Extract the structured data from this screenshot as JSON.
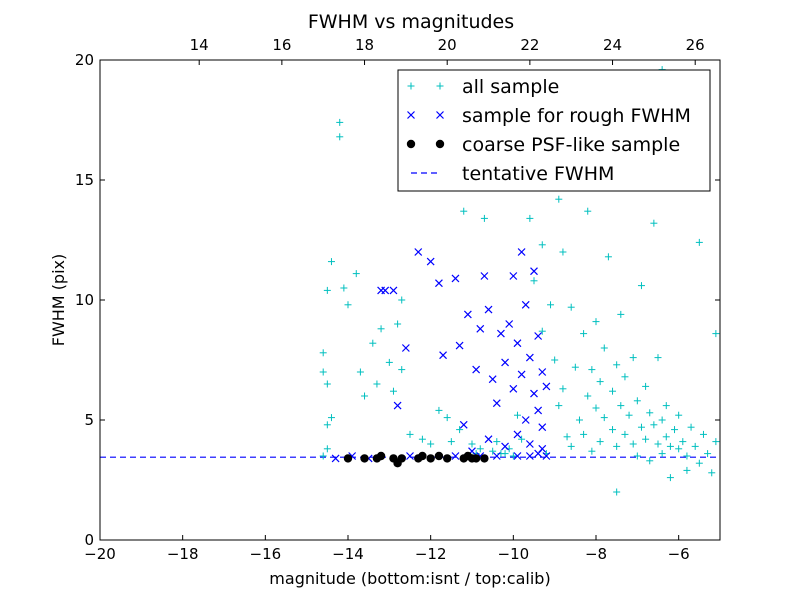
{
  "chart_data": {
    "type": "scatter",
    "title": "FWHM vs magnitudes",
    "xlabel": "magnitude (bottom:isnt / top:calib)",
    "ylabel": "FWHM (pix)",
    "xlim": [
      -20,
      -5
    ],
    "ylim": [
      0,
      20
    ],
    "x_ticks": [
      "−20",
      "−18",
      "−16",
      "−14",
      "−12",
      "−10",
      "−8",
      "−6"
    ],
    "x_tick_values": [
      -20,
      -18,
      -16,
      -14,
      -12,
      -10,
      -8,
      -6
    ],
    "y_ticks": [
      "0",
      "5",
      "10",
      "15",
      "20"
    ],
    "y_tick_values": [
      0,
      5,
      10,
      15,
      20
    ],
    "top_axis": {
      "offset": 31.6,
      "ticks": [
        "14",
        "16",
        "18",
        "20",
        "22",
        "24",
        "26"
      ],
      "tick_values": [
        14,
        16,
        18,
        20,
        22,
        24,
        26
      ]
    },
    "grid": false,
    "legend_position": "top-right",
    "tentative_fwhm": 3.45,
    "series": [
      {
        "name": "all sample",
        "marker": "plus",
        "color": "#00bfbf",
        "points": [
          [
            -14.6,
            3.5
          ],
          [
            -14.5,
            3.8
          ],
          [
            -14.5,
            4.8
          ],
          [
            -14.4,
            5.1
          ],
          [
            -14.5,
            6.5
          ],
          [
            -14.6,
            7.0
          ],
          [
            -14.6,
            7.8
          ],
          [
            -14.5,
            10.4
          ],
          [
            -14.4,
            11.6
          ],
          [
            -14.2,
            17.4
          ],
          [
            -14.2,
            16.8
          ],
          [
            -14.1,
            10.5
          ],
          [
            -14.0,
            9.8
          ],
          [
            -13.8,
            11.1
          ],
          [
            -13.7,
            7.0
          ],
          [
            -13.6,
            6.0
          ],
          [
            -13.4,
            8.2
          ],
          [
            -13.3,
            6.5
          ],
          [
            -13.2,
            8.8
          ],
          [
            -13.0,
            7.4
          ],
          [
            -12.9,
            6.2
          ],
          [
            -12.8,
            9.0
          ],
          [
            -12.7,
            10.0
          ],
          [
            -12.7,
            7.1
          ],
          [
            -12.5,
            4.4
          ],
          [
            -12.2,
            4.2
          ],
          [
            -12.0,
            4.0
          ],
          [
            -11.8,
            5.4
          ],
          [
            -11.6,
            5.1
          ],
          [
            -11.5,
            4.1
          ],
          [
            -11.3,
            4.6
          ],
          [
            -11.2,
            13.7
          ],
          [
            -11.0,
            4.0
          ],
          [
            -10.9,
            3.6
          ],
          [
            -10.8,
            3.8
          ],
          [
            -10.7,
            13.4
          ],
          [
            -10.5,
            3.7
          ],
          [
            -10.4,
            4.1
          ],
          [
            -10.3,
            3.6
          ],
          [
            -10.2,
            3.6
          ],
          [
            -10.1,
            3.8
          ],
          [
            -10.0,
            3.5
          ],
          [
            -9.9,
            5.2
          ],
          [
            -9.8,
            4.2
          ],
          [
            -9.6,
            13.4
          ],
          [
            -9.5,
            10.8
          ],
          [
            -9.3,
            12.3
          ],
          [
            -9.3,
            8.7
          ],
          [
            -9.2,
            3.6
          ],
          [
            -9.1,
            9.8
          ],
          [
            -9.0,
            7.5
          ],
          [
            -8.9,
            5.6
          ],
          [
            -8.8,
            6.3
          ],
          [
            -8.8,
            12.0
          ],
          [
            -8.7,
            4.3
          ],
          [
            -8.6,
            9.7
          ],
          [
            -8.6,
            3.9
          ],
          [
            -8.5,
            7.2
          ],
          [
            -8.5,
            17.1
          ],
          [
            -8.4,
            5.0
          ],
          [
            -8.3,
            8.6
          ],
          [
            -8.3,
            4.4
          ],
          [
            -8.2,
            6.0
          ],
          [
            -8.2,
            13.7
          ],
          [
            -8.1,
            7.1
          ],
          [
            -8.1,
            3.7
          ],
          [
            -8.0,
            5.5
          ],
          [
            -8.0,
            9.1
          ],
          [
            -7.9,
            6.6
          ],
          [
            -7.9,
            4.1
          ],
          [
            -7.8,
            8.0
          ],
          [
            -7.8,
            5.1
          ],
          [
            -7.7,
            15.6
          ],
          [
            -7.7,
            11.8
          ],
          [
            -7.6,
            6.2
          ],
          [
            -7.6,
            4.6
          ],
          [
            -7.5,
            7.3
          ],
          [
            -7.5,
            3.9
          ],
          [
            -7.4,
            5.6
          ],
          [
            -7.4,
            9.4
          ],
          [
            -7.3,
            4.4
          ],
          [
            -7.3,
            6.8
          ],
          [
            -7.2,
            5.2
          ],
          [
            -7.2,
            19.4
          ],
          [
            -7.1,
            4.0
          ],
          [
            -7.1,
            7.6
          ],
          [
            -7.0,
            5.8
          ],
          [
            -7.0,
            3.5
          ],
          [
            -6.9,
            4.7
          ],
          [
            -6.9,
            10.6
          ],
          [
            -6.8,
            6.4
          ],
          [
            -6.8,
            4.2
          ],
          [
            -6.7,
            5.3
          ],
          [
            -6.7,
            3.3
          ],
          [
            -6.6,
            4.8
          ],
          [
            -6.6,
            13.2
          ],
          [
            -6.5,
            4.0
          ],
          [
            -6.5,
            7.6
          ],
          [
            -6.4,
            5.0
          ],
          [
            -6.4,
            3.6
          ],
          [
            -6.3,
            4.3
          ],
          [
            -6.3,
            5.6
          ],
          [
            -6.2,
            3.9
          ],
          [
            -6.2,
            2.6
          ],
          [
            -6.1,
            4.6
          ],
          [
            -6.0,
            3.8
          ],
          [
            -6.0,
            5.2
          ],
          [
            -5.9,
            4.1
          ],
          [
            -5.8,
            3.5
          ],
          [
            -5.8,
            2.9
          ],
          [
            -5.7,
            4.7
          ],
          [
            -5.6,
            3.9
          ],
          [
            -5.5,
            12.4
          ],
          [
            -5.5,
            3.2
          ],
          [
            -5.4,
            4.4
          ],
          [
            -5.3,
            3.6
          ],
          [
            -5.2,
            2.8
          ],
          [
            -5.1,
            8.6
          ],
          [
            -5.1,
            4.1
          ],
          [
            -7.5,
            2.0
          ],
          [
            -8.6,
            18.4
          ],
          [
            -7.3,
            17.7
          ],
          [
            -8.9,
            14.2
          ],
          [
            -6.4,
            19.6
          ],
          [
            -6.1,
            15.9
          ]
        ]
      },
      {
        "name": "sample for rough FWHM",
        "marker": "x",
        "color": "#0000ff",
        "points": [
          [
            -14.3,
            3.4
          ],
          [
            -13.9,
            3.5
          ],
          [
            -13.5,
            3.4
          ],
          [
            -13.2,
            10.4
          ],
          [
            -13.1,
            10.4
          ],
          [
            -12.9,
            10.4
          ],
          [
            -12.8,
            5.6
          ],
          [
            -12.6,
            8.0
          ],
          [
            -12.3,
            12.0
          ],
          [
            -12.0,
            11.6
          ],
          [
            -11.8,
            10.7
          ],
          [
            -11.7,
            7.7
          ],
          [
            -11.4,
            10.9
          ],
          [
            -11.3,
            8.1
          ],
          [
            -11.2,
            4.8
          ],
          [
            -11.1,
            9.4
          ],
          [
            -11.0,
            3.7
          ],
          [
            -10.9,
            7.1
          ],
          [
            -10.8,
            8.8
          ],
          [
            -10.7,
            11.0
          ],
          [
            -10.6,
            9.6
          ],
          [
            -10.6,
            4.2
          ],
          [
            -10.5,
            6.7
          ],
          [
            -10.4,
            5.7
          ],
          [
            -10.3,
            8.6
          ],
          [
            -10.2,
            7.4
          ],
          [
            -10.2,
            3.9
          ],
          [
            -10.1,
            9.0
          ],
          [
            -10.0,
            6.3
          ],
          [
            -10.0,
            11.0
          ],
          [
            -9.9,
            4.4
          ],
          [
            -9.9,
            8.2
          ],
          [
            -9.8,
            6.9
          ],
          [
            -9.8,
            12.0
          ],
          [
            -9.7,
            5.0
          ],
          [
            -9.7,
            9.8
          ],
          [
            -9.6,
            7.6
          ],
          [
            -9.6,
            4.0
          ],
          [
            -9.5,
            6.1
          ],
          [
            -9.5,
            11.2
          ],
          [
            -9.4,
            3.6
          ],
          [
            -9.4,
            8.5
          ],
          [
            -9.4,
            5.4
          ],
          [
            -9.3,
            4.7
          ],
          [
            -9.3,
            7.0
          ],
          [
            -9.2,
            3.5
          ],
          [
            -9.2,
            6.4
          ],
          [
            -10.4,
            3.5
          ],
          [
            -10.8,
            3.5
          ],
          [
            -11.4,
            3.5
          ],
          [
            -9.9,
            3.5
          ],
          [
            -9.6,
            3.5
          ],
          [
            -9.3,
            3.8
          ],
          [
            -12.5,
            3.5
          ]
        ]
      },
      {
        "name": "coarse PSF-like sample",
        "marker": "dot",
        "color": "#000000",
        "points": [
          [
            -14.0,
            3.4
          ],
          [
            -13.6,
            3.4
          ],
          [
            -13.3,
            3.4
          ],
          [
            -13.2,
            3.5
          ],
          [
            -12.9,
            3.4
          ],
          [
            -12.8,
            3.2
          ],
          [
            -12.7,
            3.4
          ],
          [
            -12.3,
            3.4
          ],
          [
            -12.2,
            3.5
          ],
          [
            -12.0,
            3.4
          ],
          [
            -11.8,
            3.5
          ],
          [
            -11.6,
            3.4
          ],
          [
            -11.2,
            3.4
          ],
          [
            -11.1,
            3.5
          ],
          [
            -11.0,
            3.4
          ],
          [
            -10.9,
            3.4
          ],
          [
            -10.7,
            3.4
          ]
        ]
      },
      {
        "name": "tentative FWHM",
        "marker": "dashed-line",
        "color": "#0000ff",
        "points": []
      }
    ]
  }
}
